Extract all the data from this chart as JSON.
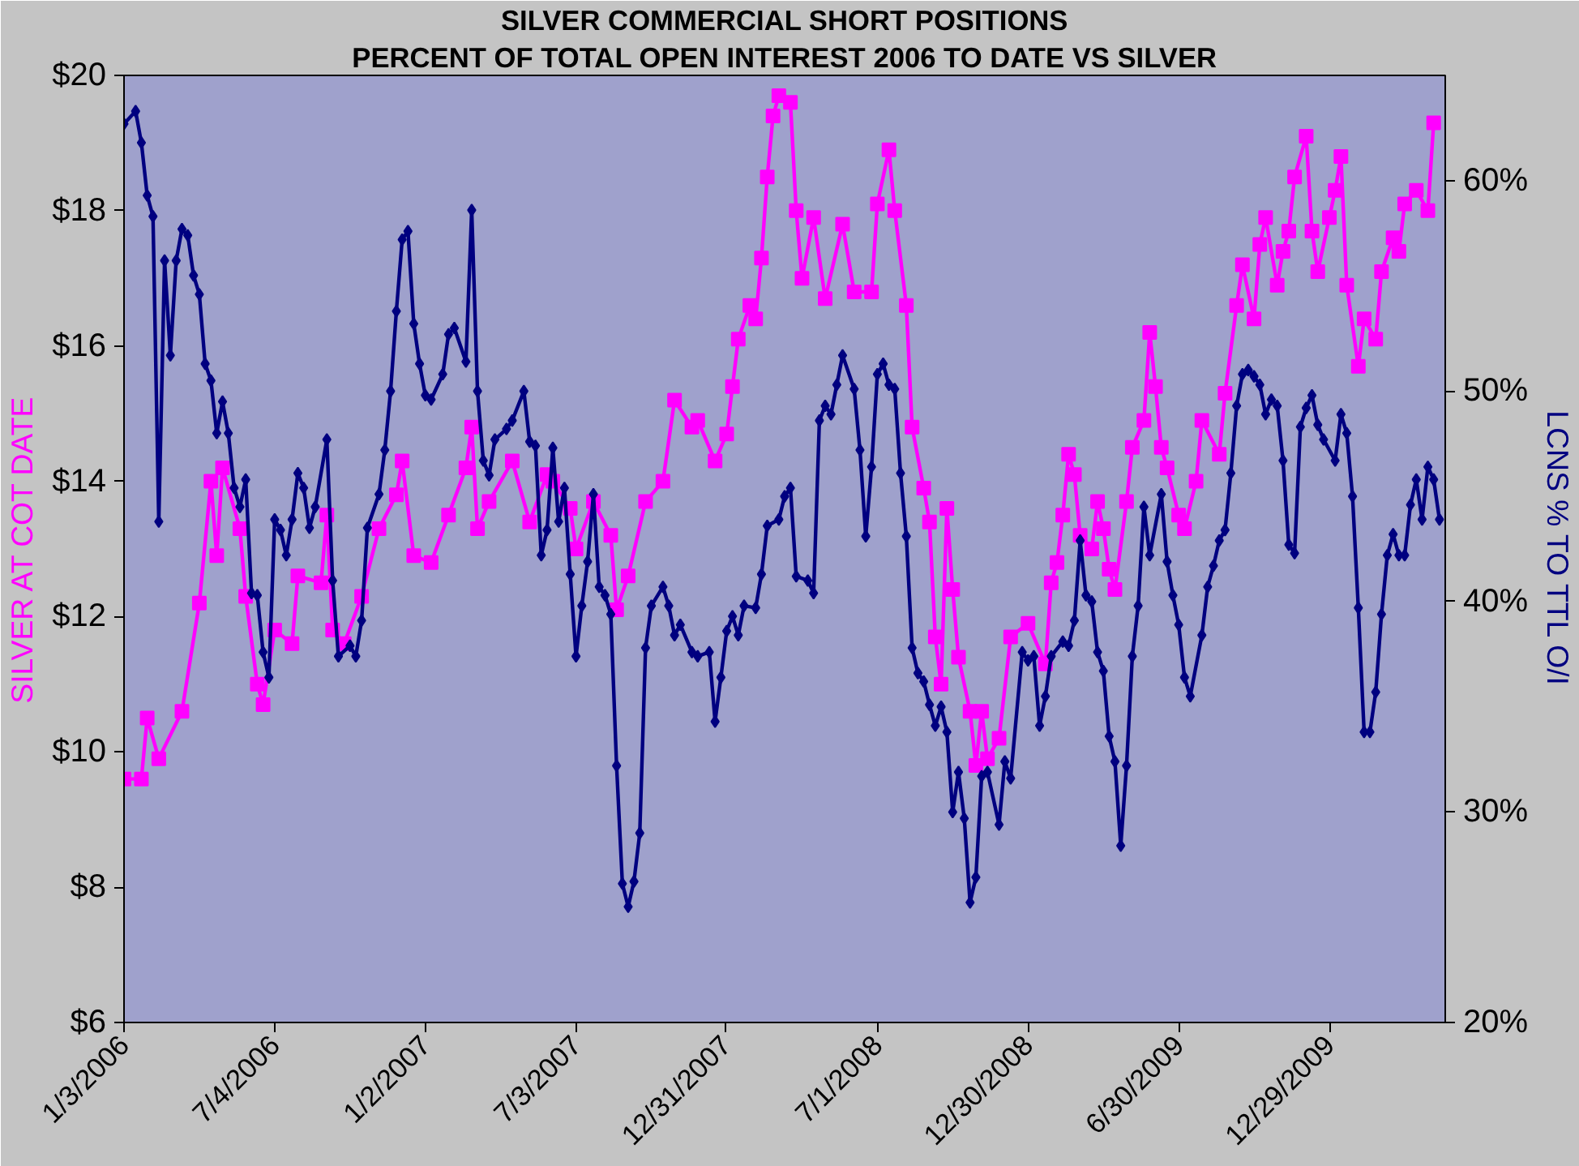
{
  "chart_data": {
    "type": "line",
    "title": "SILVER COMMERCIAL SHORT POSITIONS",
    "subtitle": "PERCENT OF TOTAL OPEN INTEREST 2006 TO DATE VS SILVER",
    "ylabel": "SILVER AT COT DATE",
    "y2label": "LCNS % TO TTL O/I",
    "xlim": [
      "2006-01-03",
      "2010-05-18"
    ],
    "xticks": [
      {
        "value": "2006-01-03",
        "label": "1/3/2006"
      },
      {
        "value": "2006-07-04",
        "label": "7/4/2006"
      },
      {
        "value": "2007-01-02",
        "label": "1/2/2007"
      },
      {
        "value": "2007-07-03",
        "label": "7/3/2007"
      },
      {
        "value": "2007-12-31",
        "label": "12/31/2007"
      },
      {
        "value": "2008-07-01",
        "label": "7/1/2008"
      },
      {
        "value": "2008-12-30",
        "label": "12/30/2008"
      },
      {
        "value": "2009-06-30",
        "label": "6/30/2009"
      },
      {
        "value": "2009-12-29",
        "label": "12/29/2009"
      }
    ],
    "ylim": [
      6,
      20
    ],
    "yticks": [
      {
        "value": 6,
        "label": "$6"
      },
      {
        "value": 8,
        "label": "$8"
      },
      {
        "value": 10,
        "label": "$10"
      },
      {
        "value": 12,
        "label": "$12"
      },
      {
        "value": 14,
        "label": "$14"
      },
      {
        "value": 16,
        "label": "$16"
      },
      {
        "value": 18,
        "label": "$18"
      },
      {
        "value": 20,
        "label": "$20"
      }
    ],
    "y2lim": [
      20,
      65
    ],
    "y2ticks": [
      {
        "value": 20,
        "label": "20%"
      },
      {
        "value": 30,
        "label": "30%"
      },
      {
        "value": 40,
        "label": "40%"
      },
      {
        "value": 50,
        "label": "50%"
      },
      {
        "value": 60,
        "label": "60%"
      }
    ],
    "grid": false,
    "series": [
      {
        "color": "#ff00ff",
        "marker": "square",
        "x": [
          "2006-01-03",
          "2006-01-24",
          "2006-01-31",
          "2006-02-14",
          "2006-03-14",
          "2006-04-04",
          "2006-04-18",
          "2006-04-25",
          "2006-05-02",
          "2006-05-23",
          "2006-05-30",
          "2006-06-13",
          "2006-06-20",
          "2006-07-04",
          "2006-07-25",
          "2006-08-01",
          "2006-08-29",
          "2006-09-05",
          "2006-09-12",
          "2006-09-26",
          "2006-10-17",
          "2006-11-07",
          "2006-11-28",
          "2006-12-05",
          "2006-12-19",
          "2007-01-09",
          "2007-01-30",
          "2007-02-20",
          "2007-02-27",
          "2007-03-06",
          "2007-03-20",
          "2007-04-17",
          "2007-05-08",
          "2007-05-29",
          "2007-06-05",
          "2007-06-26",
          "2007-07-03",
          "2007-07-24",
          "2007-08-14",
          "2007-08-21",
          "2007-09-04",
          "2007-09-25",
          "2007-10-16",
          "2007-10-30",
          "2007-11-20",
          "2007-11-27",
          "2007-12-18",
          "2008-01-01",
          "2008-01-08",
          "2008-01-15",
          "2008-01-29",
          "2008-02-05",
          "2008-02-12",
          "2008-02-19",
          "2008-02-26",
          "2008-03-04",
          "2008-03-18",
          "2008-03-25",
          "2008-04-01",
          "2008-04-15",
          "2008-04-29",
          "2008-05-20",
          "2008-06-03",
          "2008-06-24",
          "2008-07-01",
          "2008-07-15",
          "2008-07-22",
          "2008-08-05",
          "2008-08-12",
          "2008-08-26",
          "2008-09-02",
          "2008-09-09",
          "2008-09-16",
          "2008-09-23",
          "2008-09-30",
          "2008-10-07",
          "2008-10-21",
          "2008-10-28",
          "2008-11-04",
          "2008-11-11",
          "2008-11-25",
          "2008-12-09",
          "2008-12-30",
          "2009-01-20",
          "2009-01-27",
          "2009-02-03",
          "2009-02-10",
          "2009-02-17",
          "2009-02-24",
          "2009-03-03",
          "2009-03-17",
          "2009-03-24",
          "2009-03-31",
          "2009-04-07",
          "2009-04-14",
          "2009-04-28",
          "2009-05-05",
          "2009-05-19",
          "2009-05-26",
          "2009-06-02",
          "2009-06-09",
          "2009-06-16",
          "2009-06-30",
          "2009-07-07",
          "2009-07-21",
          "2009-07-28",
          "2009-08-18",
          "2009-08-25",
          "2009-09-08",
          "2009-09-15",
          "2009-09-29",
          "2009-10-06",
          "2009-10-13",
          "2009-10-27",
          "2009-11-03",
          "2009-11-10",
          "2009-11-17",
          "2009-12-01",
          "2009-12-08",
          "2009-12-15",
          "2009-12-29",
          "2010-01-05",
          "2010-01-12",
          "2010-01-19",
          "2010-02-02",
          "2010-02-09",
          "2010-02-23",
          "2010-03-02",
          "2010-03-16",
          "2010-03-23",
          "2010-03-30",
          "2010-04-13",
          "2010-04-27",
          "2010-05-04"
        ],
        "values": [
          9.6,
          9.6,
          10.5,
          9.9,
          10.6,
          12.2,
          14.0,
          12.9,
          14.2,
          13.3,
          12.3,
          11.0,
          10.7,
          11.8,
          11.6,
          12.6,
          12.5,
          13.5,
          11.8,
          11.6,
          12.3,
          13.3,
          13.8,
          14.3,
          12.9,
          12.8,
          13.5,
          14.2,
          14.8,
          13.3,
          13.7,
          14.3,
          13.4,
          14.1,
          14.0,
          13.6,
          13.0,
          13.7,
          13.2,
          12.1,
          12.6,
          13.7,
          14.0,
          15.2,
          14.8,
          14.9,
          14.3,
          14.7,
          15.4,
          16.1,
          16.6,
          16.4,
          17.3,
          18.5,
          19.4,
          19.7,
          19.6,
          18.0,
          17.0,
          17.9,
          16.7,
          17.8,
          16.8,
          16.8,
          18.1,
          18.9,
          18.0,
          16.6,
          14.8,
          13.9,
          13.4,
          11.7,
          11.0,
          13.6,
          12.4,
          11.4,
          10.6,
          9.8,
          10.6,
          9.9,
          10.2,
          11.7,
          11.9,
          11.3,
          12.5,
          12.8,
          13.5,
          14.4,
          14.1,
          13.2,
          13.0,
          13.7,
          13.3,
          12.7,
          12.4,
          13.7,
          14.5,
          14.9,
          16.2,
          15.4,
          14.5,
          14.2,
          13.5,
          13.3,
          14.0,
          14.9,
          14.4,
          15.3,
          16.6,
          17.2,
          16.4,
          17.5,
          17.9,
          16.9,
          17.4,
          17.7,
          18.5,
          19.1,
          17.7,
          17.1,
          17.9,
          18.3,
          18.8,
          16.9,
          15.7,
          16.4,
          16.1,
          17.1,
          17.6,
          17.4,
          18.1,
          18.3,
          18.0,
          19.3
        ]
      },
      {
        "color": "#000080",
        "marker": "diamond",
        "axis": "y2",
        "x": [
          "2006-01-03",
          "2006-01-17",
          "2006-01-24",
          "2006-01-31",
          "2006-02-07",
          "2006-02-14",
          "2006-02-21",
          "2006-02-28",
          "2006-03-07",
          "2006-03-14",
          "2006-03-21",
          "2006-03-28",
          "2006-04-04",
          "2006-04-11",
          "2006-04-18",
          "2006-04-25",
          "2006-05-02",
          "2006-05-09",
          "2006-05-16",
          "2006-05-23",
          "2006-05-30",
          "2006-06-06",
          "2006-06-13",
          "2006-06-20",
          "2006-06-27",
          "2006-07-04",
          "2006-07-11",
          "2006-07-18",
          "2006-07-25",
          "2006-08-01",
          "2006-08-08",
          "2006-08-15",
          "2006-08-22",
          "2006-09-05",
          "2006-09-12",
          "2006-09-19",
          "2006-10-03",
          "2006-10-10",
          "2006-10-17",
          "2006-10-24",
          "2006-11-07",
          "2006-11-14",
          "2006-11-21",
          "2006-11-28",
          "2006-12-05",
          "2006-12-12",
          "2006-12-19",
          "2006-12-26",
          "2007-01-02",
          "2007-01-09",
          "2007-01-23",
          "2007-01-30",
          "2007-02-06",
          "2007-02-20",
          "2007-02-27",
          "2007-03-06",
          "2007-03-13",
          "2007-03-20",
          "2007-03-27",
          "2007-04-10",
          "2007-04-17",
          "2007-05-01",
          "2007-05-08",
          "2007-05-15",
          "2007-05-22",
          "2007-05-29",
          "2007-06-05",
          "2007-06-12",
          "2007-06-19",
          "2007-06-26",
          "2007-07-03",
          "2007-07-10",
          "2007-07-17",
          "2007-07-24",
          "2007-07-31",
          "2007-08-07",
          "2007-08-14",
          "2007-08-21",
          "2007-08-28",
          "2007-09-04",
          "2007-09-11",
          "2007-09-18",
          "2007-09-25",
          "2007-10-02",
          "2007-10-16",
          "2007-10-23",
          "2007-10-30",
          "2007-11-06",
          "2007-11-20",
          "2007-11-27",
          "2007-12-11",
          "2007-12-18",
          "2007-12-25",
          "2008-01-01",
          "2008-01-08",
          "2008-01-15",
          "2008-01-22",
          "2008-02-05",
          "2008-02-12",
          "2008-02-19",
          "2008-03-04",
          "2008-03-11",
          "2008-03-18",
          "2008-03-25",
          "2008-04-08",
          "2008-04-15",
          "2008-04-22",
          "2008-04-29",
          "2008-05-06",
          "2008-05-13",
          "2008-05-20",
          "2008-06-03",
          "2008-06-10",
          "2008-06-17",
          "2008-06-24",
          "2008-07-01",
          "2008-07-08",
          "2008-07-15",
          "2008-07-22",
          "2008-07-29",
          "2008-08-05",
          "2008-08-12",
          "2008-08-19",
          "2008-08-26",
          "2008-09-02",
          "2008-09-09",
          "2008-09-16",
          "2008-09-23",
          "2008-09-30",
          "2008-10-07",
          "2008-10-14",
          "2008-10-21",
          "2008-10-28",
          "2008-11-04",
          "2008-11-11",
          "2008-11-25",
          "2008-12-02",
          "2008-12-09",
          "2008-12-23",
          "2008-12-30",
          "2009-01-06",
          "2009-01-13",
          "2009-01-20",
          "2009-01-27",
          "2009-02-10",
          "2009-02-17",
          "2009-02-24",
          "2009-03-03",
          "2009-03-10",
          "2009-03-17",
          "2009-03-24",
          "2009-03-31",
          "2009-04-07",
          "2009-04-14",
          "2009-04-21",
          "2009-04-28",
          "2009-05-05",
          "2009-05-12",
          "2009-05-19",
          "2009-05-26",
          "2009-06-09",
          "2009-06-16",
          "2009-06-23",
          "2009-06-30",
          "2009-07-07",
          "2009-07-14",
          "2009-07-28",
          "2009-08-04",
          "2009-08-11",
          "2009-08-18",
          "2009-08-25",
          "2009-09-01",
          "2009-09-08",
          "2009-09-15",
          "2009-09-22",
          "2009-09-29",
          "2009-10-06",
          "2009-10-13",
          "2009-10-20",
          "2009-10-27",
          "2009-11-03",
          "2009-11-10",
          "2009-11-17",
          "2009-11-24",
          "2009-12-01",
          "2009-12-08",
          "2009-12-15",
          "2009-12-22",
          "2010-01-05",
          "2010-01-12",
          "2010-01-19",
          "2010-01-26",
          "2010-02-02",
          "2010-02-09",
          "2010-02-16",
          "2010-02-23",
          "2010-03-02",
          "2010-03-09",
          "2010-03-16",
          "2010-03-23",
          "2010-03-30",
          "2010-04-06",
          "2010-04-13",
          "2010-04-20",
          "2010-04-27",
          "2010-05-04",
          "2010-05-11"
        ],
        "values": [
          62.7,
          63.3,
          61.8,
          59.3,
          58.3,
          43.8,
          56.2,
          51.7,
          56.2,
          57.7,
          57.4,
          55.5,
          54.6,
          51.3,
          50.5,
          48.0,
          49.5,
          48.0,
          45.4,
          44.5,
          45.8,
          40.4,
          40.3,
          37.6,
          36.4,
          43.9,
          43.4,
          42.2,
          43.9,
          46.1,
          45.4,
          43.5,
          44.5,
          47.7,
          41.0,
          37.4,
          37.9,
          37.4,
          39.1,
          43.5,
          45.1,
          47.2,
          50.0,
          53.8,
          57.2,
          57.6,
          53.2,
          51.3,
          49.8,
          49.6,
          50.8,
          52.7,
          53.0,
          51.4,
          58.6,
          50.0,
          46.7,
          46.0,
          47.7,
          48.2,
          48.6,
          50.0,
          47.6,
          47.4,
          42.2,
          43.4,
          47.3,
          43.8,
          45.4,
          41.3,
          37.4,
          39.8,
          41.9,
          45.1,
          40.7,
          40.3,
          39.4,
          32.2,
          26.6,
          25.5,
          26.7,
          29.0,
          37.8,
          39.8,
          40.7,
          39.8,
          38.4,
          38.9,
          37.6,
          37.4,
          37.6,
          34.3,
          36.4,
          38.6,
          39.3,
          38.4,
          39.8,
          39.7,
          41.3,
          43.6,
          43.9,
          45.0,
          45.4,
          41.2,
          41.0,
          40.4,
          48.6,
          49.3,
          48.9,
          50.3,
          51.7,
          50.1,
          47.2,
          43.1,
          46.4,
          50.8,
          51.3,
          50.3,
          50.1,
          46.1,
          43.1,
          37.8,
          36.6,
          36.2,
          35.1,
          34.1,
          35.0,
          33.8,
          30.0,
          31.9,
          29.7,
          25.7,
          26.9,
          31.7,
          31.9,
          29.4,
          32.4,
          31.6,
          37.6,
          37.2,
          37.4,
          34.1,
          35.5,
          37.4,
          38.1,
          37.9,
          39.1,
          42.9,
          40.3,
          40.0,
          37.6,
          36.7,
          33.6,
          32.4,
          28.4,
          32.2,
          37.4,
          39.8,
          44.5,
          42.2,
          45.1,
          41.9,
          40.3,
          38.9,
          36.4,
          35.5,
          38.4,
          40.7,
          41.7,
          42.9,
          43.4,
          46.1,
          49.3,
          50.8,
          51.0,
          50.7,
          50.3,
          48.9,
          49.6,
          49.3,
          46.7,
          42.7,
          42.3,
          48.3,
          49.2,
          49.8,
          48.4,
          47.7,
          46.7,
          48.9,
          48.0,
          45.0,
          39.7,
          33.8,
          33.8,
          35.7,
          39.4,
          42.2,
          43.2,
          42.2,
          42.2,
          44.6,
          45.8,
          43.9,
          46.4,
          45.8,
          43.9
        ]
      }
    ]
  }
}
